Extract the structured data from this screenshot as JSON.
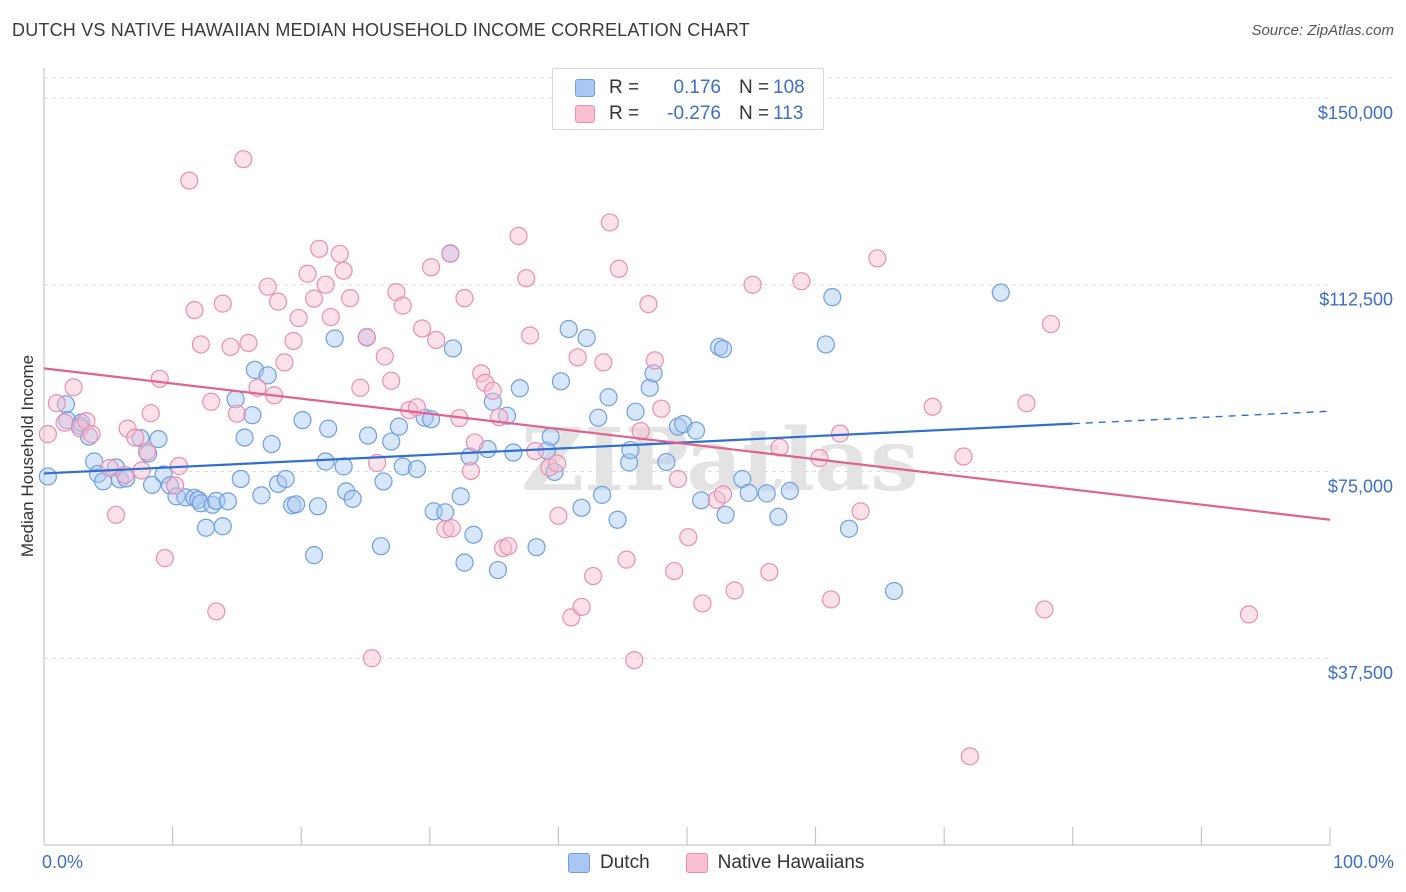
{
  "title": "DUTCH VS NATIVE HAWAIIAN MEDIAN HOUSEHOLD INCOME CORRELATION CHART",
  "source": "Source: ZipAtlas.com",
  "watermark": "ZIPatlas",
  "legend": {
    "rows": [
      {
        "r_label": "R =",
        "r_value": "0.176",
        "n_label": "N =",
        "n_value": "108",
        "color": "#a9c7f2",
        "border": "#6f9fe0"
      },
      {
        "r_label": "R =",
        "r_value": "-0.276",
        "n_label": "N =",
        "n_value": "113",
        "color": "#f7bfd1",
        "border": "#ea8fae"
      }
    ]
  },
  "bottom_legend": [
    "Dutch",
    "Native Hawaiians"
  ],
  "chart_data": {
    "type": "scatter",
    "ylabel": "Median Household Income",
    "x_tick_labels": [
      "0.0%",
      "100.0%"
    ],
    "y_tick_labels": [
      "$37,500",
      "$75,000",
      "$112,500",
      "$150,000"
    ],
    "y_ticks": [
      37500,
      75000,
      112500,
      150000
    ],
    "xlim": [
      0,
      100
    ],
    "ylim": [
      0,
      154000
    ],
    "grid": true,
    "series": [
      {
        "name": "Dutch",
        "color": "#6f9fe0",
        "fill": "#a9c7f2",
        "trend": {
          "x0": 0,
          "y0": 74600,
          "x1": 80,
          "y1": 84600,
          "dashed_to_x": 100,
          "dashed_to_y": 87100
        },
        "points": [
          [
            0.3,
            74000
          ],
          [
            1.7,
            88500
          ],
          [
            1.8,
            85300
          ],
          [
            2.8,
            84200
          ],
          [
            2.9,
            84800
          ],
          [
            3.5,
            82000
          ],
          [
            3.9,
            77000
          ],
          [
            4.2,
            74500
          ],
          [
            4.6,
            73000
          ],
          [
            5.6,
            75800
          ],
          [
            5.9,
            73400
          ],
          [
            6.4,
            73600
          ],
          [
            7.5,
            81700
          ],
          [
            8.1,
            78600
          ],
          [
            8.4,
            72300
          ],
          [
            8.9,
            81500
          ],
          [
            9.3,
            74400
          ],
          [
            9.8,
            72200
          ],
          [
            10.3,
            70000
          ],
          [
            11.0,
            69800
          ],
          [
            11.7,
            69700
          ],
          [
            12.0,
            69300
          ],
          [
            12.2,
            68600
          ],
          [
            12.6,
            63700
          ],
          [
            13.1,
            68300
          ],
          [
            13.4,
            69100
          ],
          [
            13.9,
            64000
          ],
          [
            14.3,
            69000
          ],
          [
            14.9,
            89500
          ],
          [
            15.3,
            73500
          ],
          [
            15.6,
            81800
          ],
          [
            16.2,
            86300
          ],
          [
            16.4,
            95400
          ],
          [
            16.9,
            70200
          ],
          [
            17.4,
            94300
          ],
          [
            17.7,
            80500
          ],
          [
            18.2,
            72500
          ],
          [
            18.8,
            73500
          ],
          [
            19.3,
            68200
          ],
          [
            19.6,
            68400
          ],
          [
            20.1,
            85300
          ],
          [
            21.0,
            58200
          ],
          [
            21.3,
            68000
          ],
          [
            21.9,
            77000
          ],
          [
            22.1,
            83600
          ],
          [
            22.6,
            101700
          ],
          [
            23.3,
            76000
          ],
          [
            23.5,
            71000
          ],
          [
            24.0,
            69500
          ],
          [
            25.1,
            101900
          ],
          [
            25.2,
            82200
          ],
          [
            26.2,
            60000
          ],
          [
            26.4,
            73000
          ],
          [
            27.0,
            81000
          ],
          [
            27.6,
            84000
          ],
          [
            27.9,
            76000
          ],
          [
            29.0,
            75500
          ],
          [
            29.6,
            85800
          ],
          [
            30.1,
            85500
          ],
          [
            30.3,
            67000
          ],
          [
            31.2,
            66800
          ],
          [
            31.6,
            118800
          ],
          [
            31.8,
            99700
          ],
          [
            32.4,
            70000
          ],
          [
            32.7,
            56700
          ],
          [
            33.1,
            78000
          ],
          [
            33.4,
            62300
          ],
          [
            34.5,
            79500
          ],
          [
            34.9,
            89000
          ],
          [
            35.3,
            55200
          ],
          [
            36.0,
            86200
          ],
          [
            36.5,
            78800
          ],
          [
            37.0,
            91700
          ],
          [
            38.3,
            59800
          ],
          [
            39.1,
            79200
          ],
          [
            39.4,
            82000
          ],
          [
            39.7,
            74900
          ],
          [
            40.2,
            93100
          ],
          [
            40.8,
            103600
          ],
          [
            41.8,
            67700
          ],
          [
            42.2,
            101800
          ],
          [
            43.1,
            85800
          ],
          [
            43.4,
            70300
          ],
          [
            43.9,
            89900
          ],
          [
            44.6,
            65300
          ],
          [
            45.5,
            76800
          ],
          [
            45.6,
            79300
          ],
          [
            46.0,
            87000
          ],
          [
            47.1,
            91800
          ],
          [
            47.4,
            94700
          ],
          [
            48.4,
            76900
          ],
          [
            49.3,
            84000
          ],
          [
            49.7,
            84500
          ],
          [
            50.7,
            83200
          ],
          [
            51.1,
            69200
          ],
          [
            52.5,
            100000
          ],
          [
            52.8,
            99600
          ],
          [
            53.0,
            66300
          ],
          [
            54.3,
            73500
          ],
          [
            54.8,
            70700
          ],
          [
            56.2,
            70600
          ],
          [
            57.1,
            65900
          ],
          [
            58.0,
            71100
          ],
          [
            60.8,
            100500
          ],
          [
            61.3,
            110000
          ],
          [
            62.6,
            63500
          ],
          [
            66.1,
            51000
          ],
          [
            74.4,
            110900
          ]
        ]
      },
      {
        "name": "Native Hawaiians",
        "color": "#ea8fae",
        "fill": "#f7bfd1",
        "trend": {
          "x0": 0,
          "y0": 95700,
          "x1": 100,
          "y1": 65300
        },
        "points": [
          [
            0.3,
            82500
          ],
          [
            1.0,
            88700
          ],
          [
            1.6,
            84800
          ],
          [
            2.3,
            91900
          ],
          [
            2.8,
            83700
          ],
          [
            3.3,
            85100
          ],
          [
            3.7,
            82500
          ],
          [
            5.1,
            75700
          ],
          [
            5.6,
            66300
          ],
          [
            6.3,
            74300
          ],
          [
            6.5,
            83600
          ],
          [
            7.1,
            81800
          ],
          [
            7.6,
            75200
          ],
          [
            8.0,
            79000
          ],
          [
            8.3,
            86700
          ],
          [
            9.0,
            93600
          ],
          [
            9.4,
            57600
          ],
          [
            10.2,
            72200
          ],
          [
            10.5,
            76100
          ],
          [
            11.3,
            133400
          ],
          [
            11.7,
            107400
          ],
          [
            12.2,
            100500
          ],
          [
            13.0,
            89000
          ],
          [
            13.4,
            46900
          ],
          [
            13.9,
            108700
          ],
          [
            14.5,
            100000
          ],
          [
            15.0,
            86600
          ],
          [
            15.5,
            137700
          ],
          [
            15.9,
            100800
          ],
          [
            16.6,
            91800
          ],
          [
            17.4,
            112100
          ],
          [
            17.9,
            90300
          ],
          [
            18.2,
            109100
          ],
          [
            18.7,
            96900
          ],
          [
            19.4,
            101200
          ],
          [
            19.8,
            105800
          ],
          [
            20.5,
            114700
          ],
          [
            21.0,
            109700
          ],
          [
            21.4,
            119700
          ],
          [
            21.9,
            112500
          ],
          [
            22.3,
            106000
          ],
          [
            23.0,
            118700
          ],
          [
            23.3,
            115300
          ],
          [
            23.8,
            109800
          ],
          [
            24.6,
            91800
          ],
          [
            25.1,
            102000
          ],
          [
            25.5,
            37500
          ],
          [
            25.9,
            76700
          ],
          [
            26.5,
            98100
          ],
          [
            27.0,
            93200
          ],
          [
            27.4,
            111000
          ],
          [
            27.9,
            108300
          ],
          [
            28.4,
            87300
          ],
          [
            29.0,
            87900
          ],
          [
            29.4,
            103700
          ],
          [
            30.1,
            116000
          ],
          [
            30.5,
            101400
          ],
          [
            31.2,
            63400
          ],
          [
            31.6,
            118700
          ],
          [
            31.7,
            63600
          ],
          [
            32.3,
            85700
          ],
          [
            32.7,
            109800
          ],
          [
            33.2,
            75100
          ],
          [
            33.5,
            80800
          ],
          [
            34.0,
            94700
          ],
          [
            34.3,
            92800
          ],
          [
            34.9,
            91200
          ],
          [
            35.4,
            85900
          ],
          [
            35.7,
            59600
          ],
          [
            36.1,
            60000
          ],
          [
            36.9,
            122300
          ],
          [
            37.5,
            113800
          ],
          [
            37.8,
            102300
          ],
          [
            38.2,
            79100
          ],
          [
            39.3,
            75800
          ],
          [
            39.9,
            76600
          ],
          [
            40.0,
            66100
          ],
          [
            41.0,
            45700
          ],
          [
            41.5,
            97900
          ],
          [
            41.8,
            47800
          ],
          [
            42.7,
            54000
          ],
          [
            43.5,
            96900
          ],
          [
            44.0,
            125000
          ],
          [
            44.7,
            115700
          ],
          [
            45.3,
            57300
          ],
          [
            45.9,
            37100
          ],
          [
            46.4,
            83100
          ],
          [
            47.0,
            108600
          ],
          [
            47.5,
            97300
          ],
          [
            48.0,
            87600
          ],
          [
            49.0,
            55000
          ],
          [
            49.3,
            73500
          ],
          [
            50.1,
            61800
          ],
          [
            51.2,
            48500
          ],
          [
            52.3,
            69300
          ],
          [
            52.8,
            70400
          ],
          [
            53.7,
            51100
          ],
          [
            55.1,
            112500
          ],
          [
            56.4,
            54800
          ],
          [
            57.2,
            79800
          ],
          [
            58.9,
            113200
          ],
          [
            60.3,
            77700
          ],
          [
            61.2,
            49300
          ],
          [
            61.9,
            82600
          ],
          [
            63.5,
            67000
          ],
          [
            64.8,
            117800
          ],
          [
            69.1,
            88000
          ],
          [
            71.5,
            78000
          ],
          [
            72.0,
            17800
          ],
          [
            76.4,
            88700
          ],
          [
            77.8,
            47300
          ],
          [
            78.3,
            104600
          ],
          [
            93.7,
            46300
          ]
        ]
      }
    ]
  }
}
